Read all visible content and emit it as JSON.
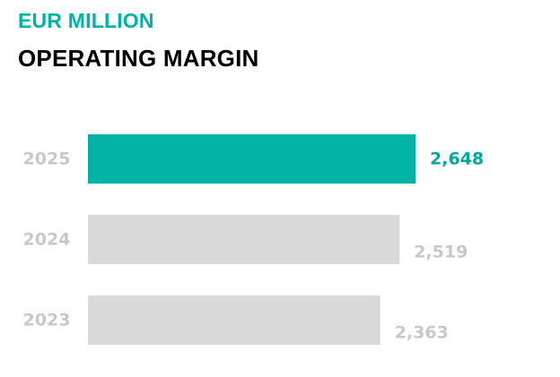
{
  "header": {
    "unit": "EUR MILLION",
    "title": "OPERATING MARGIN"
  },
  "colors": {
    "highlight": "#00b3a6",
    "bar_default": "#d9d9d9",
    "label_muted": "#c8c8c8",
    "value_highlight": "#00a99d",
    "title": "#000000"
  },
  "chart_data": {
    "type": "bar",
    "orientation": "horizontal",
    "title": "OPERATING MARGIN",
    "subtitle": "EUR MILLION",
    "categories": [
      "2025",
      "2024",
      "2023"
    ],
    "values": [
      2648,
      2519,
      2363
    ],
    "value_labels": [
      "2,648",
      "2,519",
      "2,363"
    ],
    "highlight_index": 0,
    "xlim": [
      0,
      2800
    ],
    "xlabel": "",
    "ylabel": "",
    "grid": false,
    "legend": "none"
  }
}
